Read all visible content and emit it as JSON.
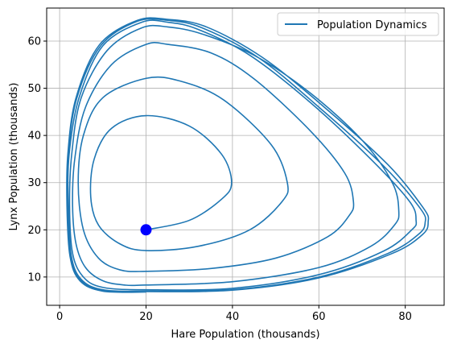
{
  "chart_data": {
    "type": "line",
    "title": "",
    "xlabel": "Hare Population (thousands)",
    "ylabel": "Lynx Population (thousands)",
    "xlim": [
      -3,
      89
    ],
    "ylim": [
      4,
      67
    ],
    "xticks": [
      0,
      20,
      40,
      60,
      80
    ],
    "yticks": [
      10,
      20,
      30,
      40,
      50,
      60
    ],
    "grid": true,
    "legend_position": "top-right",
    "series": [
      {
        "name": "Population Dynamics",
        "color": "#1f77b4",
        "points": [
          [
            20.0,
            20.0
          ],
          [
            30.0,
            22.0
          ],
          [
            37.5,
            26.5
          ],
          [
            39.8,
            30.0
          ],
          [
            37.5,
            36.0
          ],
          [
            30.0,
            42.0
          ],
          [
            20.0,
            44.2
          ],
          [
            12.0,
            41.5
          ],
          [
            8.0,
            35.0
          ],
          [
            7.2,
            27.0
          ],
          [
            9.0,
            21.0
          ],
          [
            14.0,
            17.0
          ],
          [
            20.0,
            15.6
          ],
          [
            32.0,
            16.5
          ],
          [
            44.0,
            20.0
          ],
          [
            51.5,
            26.0
          ],
          [
            52.7,
            30.0
          ],
          [
            49.0,
            38.0
          ],
          [
            38.0,
            47.5
          ],
          [
            28.0,
            51.5
          ],
          [
            20.0,
            52.1
          ],
          [
            10.0,
            48.0
          ],
          [
            5.5,
            40.0
          ],
          [
            4.3,
            30.0
          ],
          [
            5.5,
            20.0
          ],
          [
            9.0,
            14.0
          ],
          [
            14.0,
            11.5
          ],
          [
            20.0,
            11.2
          ],
          [
            35.0,
            11.8
          ],
          [
            50.0,
            14.0
          ],
          [
            62.0,
            18.5
          ],
          [
            67.0,
            23.0
          ],
          [
            68.0,
            26.0
          ],
          [
            66.0,
            32.0
          ],
          [
            58.0,
            41.0
          ],
          [
            45.0,
            52.0
          ],
          [
            35.0,
            57.5
          ],
          [
            25.0,
            59.3
          ],
          [
            20.0,
            59.3
          ],
          [
            12.0,
            55.0
          ],
          [
            6.0,
            46.0
          ],
          [
            3.5,
            35.0
          ],
          [
            3.0,
            25.0
          ],
          [
            3.8,
            17.0
          ],
          [
            6.0,
            12.0
          ],
          [
            10.0,
            9.2
          ],
          [
            15.0,
            8.3
          ],
          [
            20.0,
            8.3
          ],
          [
            40.0,
            9.0
          ],
          [
            60.0,
            12.0
          ],
          [
            72.0,
            16.5
          ],
          [
            77.5,
            21.0
          ],
          [
            78.5,
            24.0
          ],
          [
            77.0,
            30.0
          ],
          [
            70.0,
            39.0
          ],
          [
            58.0,
            49.0
          ],
          [
            45.0,
            57.0
          ],
          [
            33.0,
            61.5
          ],
          [
            25.0,
            63.0
          ],
          [
            19.0,
            62.8
          ],
          [
            11.0,
            58.0
          ],
          [
            5.0,
            48.0
          ],
          [
            2.8,
            36.0
          ],
          [
            2.3,
            25.0
          ],
          [
            3.0,
            15.0
          ],
          [
            5.5,
            10.0
          ],
          [
            10.0,
            7.8
          ],
          [
            20.0,
            7.3
          ],
          [
            40.0,
            7.6
          ],
          [
            60.0,
            10.5
          ],
          [
            75.0,
            15.5
          ],
          [
            81.5,
            20.0
          ],
          [
            82.5,
            22.0
          ],
          [
            81.0,
            26.0
          ],
          [
            72.0,
            35.0
          ],
          [
            58.0,
            47.0
          ],
          [
            44.0,
            57.0
          ],
          [
            32.0,
            62.5
          ],
          [
            25.0,
            64.0
          ],
          [
            19.0,
            64.0
          ],
          [
            10.0,
            59.0
          ],
          [
            4.5,
            48.0
          ],
          [
            2.2,
            36.0
          ],
          [
            2.0,
            25.0
          ],
          [
            2.7,
            14.5
          ],
          [
            5.0,
            9.5
          ],
          [
            10.0,
            7.3
          ],
          [
            20.0,
            7.0
          ],
          [
            40.0,
            7.3
          ],
          [
            60.0,
            10.0
          ],
          [
            76.0,
            15.0
          ],
          [
            83.0,
            19.0
          ],
          [
            84.6,
            21.5
          ],
          [
            83.5,
            24.5
          ],
          [
            75.0,
            33.5
          ],
          [
            60.0,
            46.0
          ],
          [
            46.0,
            56.5
          ],
          [
            33.0,
            62.8
          ],
          [
            25.0,
            64.4
          ],
          [
            18.0,
            64.2
          ],
          [
            9.5,
            59.0
          ],
          [
            4.0,
            48.0
          ],
          [
            2.0,
            36.0
          ],
          [
            1.8,
            25.0
          ],
          [
            2.5,
            14.5
          ],
          [
            4.8,
            9.3
          ],
          [
            10.0,
            7.1
          ],
          [
            20.0,
            6.9
          ],
          [
            40.0,
            7.2
          ],
          [
            60.0,
            9.8
          ],
          [
            77.0,
            15.0
          ],
          [
            84.0,
            19.0
          ],
          [
            85.3,
            21.7
          ],
          [
            84.2,
            24.6
          ],
          [
            76.0,
            33.8
          ],
          [
            61.0,
            46.2
          ],
          [
            47.0,
            56.5
          ],
          [
            34.0,
            63.0
          ],
          [
            25.0,
            64.6
          ],
          [
            18.0,
            64.4
          ],
          [
            9.2,
            59.2
          ],
          [
            3.8,
            48.0
          ],
          [
            1.9,
            36.0
          ],
          [
            1.7,
            25.0
          ],
          [
            2.4,
            14.4
          ],
          [
            4.7,
            9.2
          ],
          [
            10.0,
            7.0
          ],
          [
            20.0,
            6.8
          ]
        ]
      }
    ],
    "markers": [
      {
        "x": 20,
        "y": 20,
        "color": "#0000ff"
      }
    ]
  }
}
